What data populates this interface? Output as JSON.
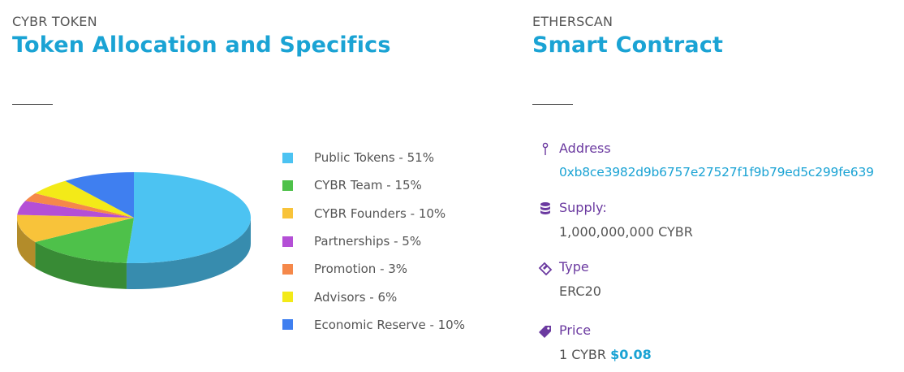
{
  "left": {
    "eyebrow": "CYBR TOKEN",
    "title": "Token Allocation and Specifics"
  },
  "right": {
    "eyebrow": "ETHERSCAN",
    "title": "Smart Contract",
    "properties": {
      "address": {
        "label": "Address",
        "value": "0xb8ce3982d9b6757e27527f1f9b79ed5c299fe639",
        "icon": "pin-icon"
      },
      "supply": {
        "label": "Supply:",
        "value": "1,000,000,000 CYBR",
        "icon": "database-icon"
      },
      "type": {
        "label": "Type",
        "value": "ERC20",
        "icon": "ticket-icon"
      },
      "price": {
        "label": "Price",
        "prefix": "1 CYBR",
        "amount": "$0.08",
        "icon": "tag-icon"
      }
    }
  },
  "chart_data": {
    "type": "pie",
    "title": "",
    "series": [
      {
        "name": "Public Tokens - 51%",
        "value": 51,
        "color": "#4cc3f2"
      },
      {
        "name": "CYBR Team - 15%",
        "value": 15,
        "color": "#4ec14a"
      },
      {
        "name": "CYBR Founders - 10%",
        "value": 10,
        "color": "#f8c33a"
      },
      {
        "name": "Partnerships - 5%",
        "value": 5,
        "color": "#b44fd6"
      },
      {
        "name": "Promotion - 3%",
        "value": 3,
        "color": "#f5884a"
      },
      {
        "name": "Advisors - 6%",
        "value": 6,
        "color": "#f3ea18"
      },
      {
        "name": "Economic Reserve - 10%",
        "value": 10,
        "color": "#3f7ff0"
      }
    ],
    "legend_position": "right",
    "style": "3d-tilted"
  },
  "colors": {
    "accent": "#1aa3d4",
    "label_purple": "#6b3aa0"
  }
}
